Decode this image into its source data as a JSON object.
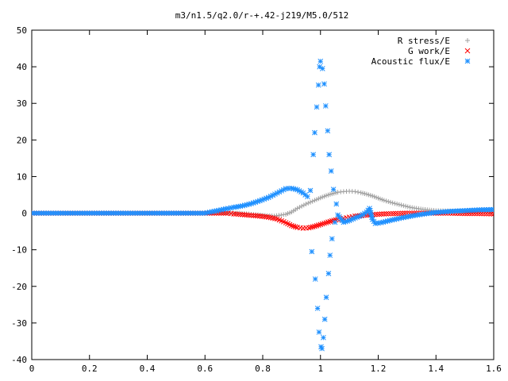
{
  "chart_data": {
    "type": "scatter",
    "title": "m3/n1.5/q2.0/r-+.42-j219/M5.0/512",
    "xlabel": "",
    "ylabel": "",
    "xlim": [
      0,
      1.6
    ],
    "ylim": [
      -40,
      50
    ],
    "x_ticks": [
      "0",
      "0.2",
      "0.4",
      "0.6",
      "0.8",
      "1",
      "1.2",
      "1.4",
      "1.6"
    ],
    "y_ticks": [
      "-40",
      "-30",
      "-20",
      "-10",
      "0",
      "10",
      "20",
      "30",
      "40",
      "50"
    ],
    "x_tick_values": [
      0,
      0.2,
      0.4,
      0.6,
      0.8,
      1.0,
      1.2,
      1.4,
      1.6
    ],
    "y_tick_values": [
      -40,
      -30,
      -20,
      -10,
      0,
      10,
      20,
      30,
      40,
      50
    ],
    "grid": false,
    "legend_position": "top-right",
    "series": [
      {
        "name": "R stress/E",
        "marker": "plus",
        "color": "#a0a0a0",
        "points": [
          [
            0.0,
            0
          ],
          [
            0.2,
            0
          ],
          [
            0.4,
            0
          ],
          [
            0.6,
            0
          ],
          [
            0.68,
            0
          ],
          [
            0.72,
            0
          ],
          [
            0.76,
            -0.3
          ],
          [
            0.8,
            -0.6
          ],
          [
            0.84,
            -0.8
          ],
          [
            0.88,
            -0.3
          ],
          [
            0.9,
            0.3
          ],
          [
            0.92,
            1.3
          ],
          [
            0.95,
            2.5
          ],
          [
            0.98,
            3.5
          ],
          [
            1.0,
            4.2
          ],
          [
            1.02,
            4.8
          ],
          [
            1.04,
            5.3
          ],
          [
            1.06,
            5.7
          ],
          [
            1.08,
            5.9
          ],
          [
            1.1,
            6.0
          ],
          [
            1.12,
            5.9
          ],
          [
            1.14,
            5.6
          ],
          [
            1.16,
            5.2
          ],
          [
            1.18,
            4.7
          ],
          [
            1.2,
            4.1
          ],
          [
            1.22,
            3.5
          ],
          [
            1.25,
            2.8
          ],
          [
            1.28,
            2.2
          ],
          [
            1.31,
            1.6
          ],
          [
            1.34,
            1.2
          ],
          [
            1.37,
            0.9
          ],
          [
            1.4,
            0.7
          ],
          [
            1.44,
            0.6
          ],
          [
            1.48,
            0.5
          ],
          [
            1.52,
            0.5
          ],
          [
            1.56,
            0.5
          ],
          [
            1.6,
            0.5
          ]
        ]
      },
      {
        "name": "G work/E",
        "marker": "cross",
        "color": "#ff0000",
        "points": [
          [
            0.0,
            0
          ],
          [
            0.2,
            0
          ],
          [
            0.4,
            0
          ],
          [
            0.6,
            0
          ],
          [
            0.68,
            0
          ],
          [
            0.7,
            -0.2
          ],
          [
            0.73,
            -0.4
          ],
          [
            0.76,
            -0.6
          ],
          [
            0.79,
            -0.8
          ],
          [
            0.82,
            -1.1
          ],
          [
            0.85,
            -1.6
          ],
          [
            0.88,
            -2.6
          ],
          [
            0.9,
            -3.4
          ],
          [
            0.92,
            -3.9
          ],
          [
            0.94,
            -4.1
          ],
          [
            0.96,
            -4.0
          ],
          [
            0.98,
            -3.6
          ],
          [
            1.0,
            -3.1
          ],
          [
            1.02,
            -2.6
          ],
          [
            1.04,
            -2.1
          ],
          [
            1.06,
            -1.7
          ],
          [
            1.08,
            -1.4
          ],
          [
            1.1,
            -1.1
          ],
          [
            1.12,
            -0.8
          ],
          [
            1.15,
            -0.6
          ],
          [
            1.18,
            -0.4
          ],
          [
            1.22,
            -0.2
          ],
          [
            1.26,
            -0.1
          ],
          [
            1.3,
            0.0
          ],
          [
            1.35,
            0.0
          ],
          [
            1.4,
            0.0
          ],
          [
            1.45,
            0.0
          ],
          [
            1.5,
            -0.1
          ],
          [
            1.55,
            -0.1
          ],
          [
            1.6,
            -0.2
          ]
        ]
      },
      {
        "name": "Acoustic flux/E",
        "marker": "star",
        "color": "#1e90ff",
        "points": [
          [
            0.0,
            0
          ],
          [
            0.2,
            0
          ],
          [
            0.4,
            0
          ],
          [
            0.6,
            0
          ],
          [
            0.68,
            1.3
          ],
          [
            0.7,
            1.6
          ],
          [
            0.73,
            2.0
          ],
          [
            0.76,
            2.6
          ],
          [
            0.79,
            3.4
          ],
          [
            0.82,
            4.3
          ],
          [
            0.85,
            5.5
          ],
          [
            0.88,
            6.7
          ],
          [
            0.9,
            6.8
          ],
          [
            0.92,
            6.4
          ],
          [
            0.94,
            5.5
          ],
          [
            0.955,
            4.5
          ],
          [
            0.965,
            6.2
          ],
          [
            0.97,
            -10.5
          ],
          [
            0.975,
            16.0
          ],
          [
            0.98,
            22.0
          ],
          [
            0.982,
            -18.0
          ],
          [
            0.987,
            29.0
          ],
          [
            0.99,
            -26.0
          ],
          [
            0.993,
            35.0
          ],
          [
            0.995,
            -32.5
          ],
          [
            0.997,
            40.0
          ],
          [
            1.0,
            41.5
          ],
          [
            1.002,
            -36.5
          ],
          [
            1.005,
            -37.0
          ],
          [
            1.007,
            39.5
          ],
          [
            1.01,
            -34.0
          ],
          [
            1.013,
            35.3
          ],
          [
            1.015,
            -29.0
          ],
          [
            1.018,
            29.3
          ],
          [
            1.02,
            -23.0
          ],
          [
            1.025,
            22.5
          ],
          [
            1.028,
            -16.5
          ],
          [
            1.03,
            16.0
          ],
          [
            1.033,
            -11.5
          ],
          [
            1.037,
            11.5
          ],
          [
            1.04,
            -7.0
          ],
          [
            1.045,
            6.5
          ],
          [
            1.05,
            -2.5
          ],
          [
            1.055,
            2.5
          ],
          [
            1.06,
            -0.5
          ],
          [
            1.07,
            -1.5
          ],
          [
            1.08,
            -2.5
          ],
          [
            1.1,
            -2.0
          ],
          [
            1.12,
            -1.3
          ],
          [
            1.14,
            -0.7
          ],
          [
            1.16,
            0.3
          ],
          [
            1.17,
            1.3
          ],
          [
            1.18,
            -1.7
          ],
          [
            1.19,
            -2.8
          ],
          [
            1.21,
            -2.6
          ],
          [
            1.24,
            -2.0
          ],
          [
            1.28,
            -1.3
          ],
          [
            1.32,
            -0.7
          ],
          [
            1.36,
            -0.2
          ],
          [
            1.4,
            0.2
          ],
          [
            1.45,
            0.5
          ],
          [
            1.5,
            0.7
          ],
          [
            1.55,
            0.9
          ],
          [
            1.6,
            1.0
          ]
        ]
      }
    ]
  }
}
